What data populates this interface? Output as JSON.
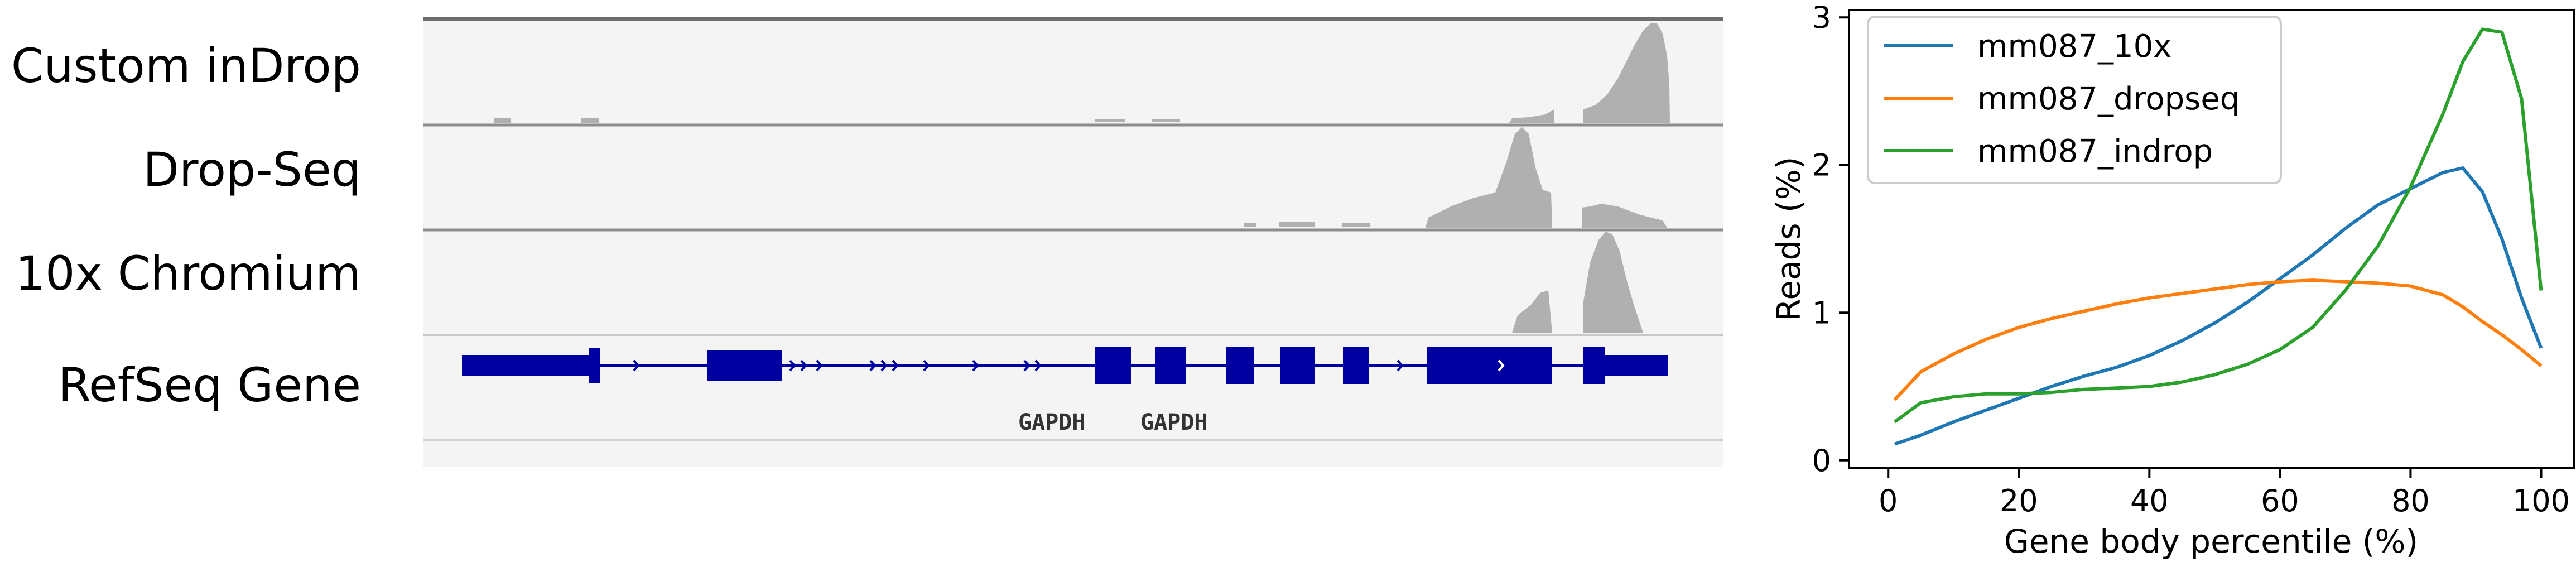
{
  "browser": {
    "tracks": [
      {
        "name": "Custom inDrop",
        "key": "indrop"
      },
      {
        "name": "Drop-Seq",
        "key": "dropseq"
      },
      {
        "name": "10x Chromium",
        "key": "tenx"
      },
      {
        "name": "RefSeq Gene",
        "key": "refseq"
      }
    ],
    "gene_labels": [
      "GAPDH",
      "GAPDH"
    ]
  },
  "colors": {
    "coverage": "#b0b0b0",
    "gene": "#0000a0",
    "track_bg": "#f4f4f4",
    "divider": "#8c8c8c",
    "series_10x": "#1f77b4",
    "series_dropseq": "#ff7f0e",
    "series_indrop": "#2ca02c"
  },
  "chart_data": {
    "type": "line",
    "xlabel": "Gene body percentile (%)",
    "ylabel": "Reads (%)",
    "xlim": [
      -6,
      105
    ],
    "ylim": [
      -0.05,
      3.05
    ],
    "xticks": [
      0,
      20,
      40,
      60,
      80,
      100
    ],
    "yticks": [
      0,
      1,
      2,
      3
    ],
    "legend_position": "upper-left",
    "x": [
      1,
      5,
      10,
      15,
      20,
      25,
      30,
      35,
      40,
      45,
      50,
      55,
      60,
      65,
      70,
      75,
      80,
      85,
      88,
      91,
      94,
      97,
      100
    ],
    "series": [
      {
        "name": "mm087_10x",
        "color": "#1f77b4",
        "values": [
          0.11,
          0.17,
          0.26,
          0.34,
          0.42,
          0.5,
          0.57,
          0.63,
          0.71,
          0.81,
          0.93,
          1.07,
          1.23,
          1.39,
          1.57,
          1.73,
          1.84,
          1.95,
          1.98,
          1.82,
          1.5,
          1.1,
          0.76
        ]
      },
      {
        "name": "mm087_dropseq",
        "color": "#ff7f0e",
        "values": [
          0.41,
          0.6,
          0.72,
          0.82,
          0.9,
          0.96,
          1.01,
          1.06,
          1.1,
          1.13,
          1.16,
          1.19,
          1.21,
          1.22,
          1.21,
          1.2,
          1.18,
          1.12,
          1.04,
          0.94,
          0.85,
          0.75,
          0.64
        ]
      },
      {
        "name": "mm087_indrop",
        "color": "#2ca02c",
        "values": [
          0.26,
          0.39,
          0.43,
          0.45,
          0.45,
          0.46,
          0.48,
          0.49,
          0.5,
          0.53,
          0.58,
          0.65,
          0.75,
          0.9,
          1.15,
          1.45,
          1.85,
          2.35,
          2.7,
          2.92,
          2.9,
          2.45,
          1.15
        ]
      }
    ]
  }
}
